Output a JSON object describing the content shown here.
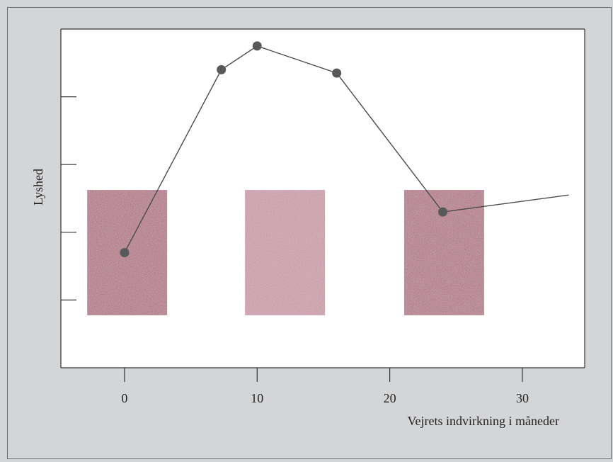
{
  "chart_data": {
    "type": "line",
    "title": "",
    "xlabel": "Vejrets indvirkning i måneder",
    "ylabel": "Lyshed",
    "xlim": [
      -4.8,
      34.7
    ],
    "ylim": [
      0,
      100
    ],
    "x_ticks": [
      0,
      10,
      20,
      30
    ],
    "x_tick_labels": [
      "0",
      "10",
      "20",
      "30"
    ],
    "y_ticks": [
      20,
      40,
      60,
      80
    ],
    "y_tick_labels": [
      "",
      "",
      "",
      ""
    ],
    "grid": false,
    "series": [
      {
        "name": "",
        "x": [
          0,
          7.3,
          10,
          16,
          24,
          33.5
        ],
        "y": [
          34,
          88,
          95,
          87,
          46,
          51
        ],
        "markers": [
          true,
          true,
          true,
          true,
          true,
          false
        ]
      }
    ],
    "swatches": [
      {
        "x_center": 0.2,
        "y_range": [
          15.5,
          52.5
        ],
        "color": "#ad6f80"
      },
      {
        "x_center": 12.1,
        "y_range": [
          15.5,
          52.5
        ],
        "color": "#c795a3"
      },
      {
        "x_center": 24.1,
        "y_range": [
          15.5,
          52.5
        ],
        "color": "#ae7182"
      }
    ],
    "colors": {
      "line": "#4a4b4d",
      "marker": "#58595b",
      "axis": "#333333",
      "plot_background": "#ffffff",
      "page_background": "#d4d5d7"
    }
  }
}
